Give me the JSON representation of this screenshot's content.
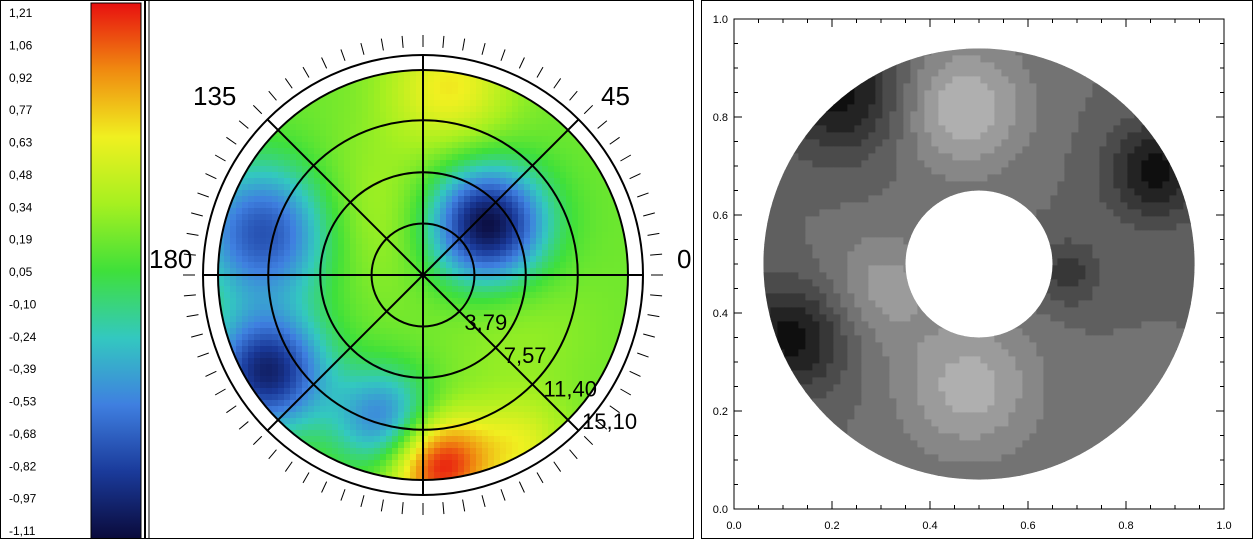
{
  "chart_data": [
    {
      "type": "heatmap",
      "subtype": "polar",
      "title": "",
      "colorbar": {
        "ticks": [
          "1,21",
          "1,06",
          "0,92",
          "0,77",
          "0,63",
          "0,48",
          "0,34",
          "0,19",
          "0,05",
          "-0,10",
          "-0,24",
          "-0,39",
          "-0,53",
          "-0,68",
          "-0,82",
          "-0,97",
          "-1,11"
        ],
        "range": [
          -1.11,
          1.21
        ],
        "colors": [
          "#0a0a3a",
          "#1a3a9a",
          "#3f7fe0",
          "#33c8c0",
          "#3fe03a",
          "#a6f020",
          "#f0f020",
          "#f08a10",
          "#e81010"
        ]
      },
      "angle_labels": [
        {
          "deg": 0,
          "text": "0"
        },
        {
          "deg": 45,
          "text": "45"
        },
        {
          "deg": 135,
          "text": "135"
        },
        {
          "deg": 180,
          "text": "180"
        }
      ],
      "radial_labels": [
        "3,79",
        "7,57",
        "11,40",
        "15,10"
      ],
      "radial_values": [
        3.79,
        7.57,
        11.4,
        15.1
      ],
      "spoke_angles_deg": [
        0,
        45,
        90,
        135,
        180,
        225,
        270,
        315
      ],
      "blobs": [
        {
          "angle_deg": 38,
          "r": 6.0,
          "value": -1.11,
          "spread": 3.0
        },
        {
          "angle_deg": 165,
          "r": 12.0,
          "value": -0.75,
          "spread": 3.6
        },
        {
          "angle_deg": 212,
          "r": 13.5,
          "value": -0.95,
          "spread": 3.0
        },
        {
          "angle_deg": 255,
          "r": 11.0,
          "value": -0.55,
          "spread": 2.6
        },
        {
          "angle_deg": 275,
          "r": 14.0,
          "value": 1.21,
          "spread": 2.6
        },
        {
          "angle_deg": 82,
          "r": 14.0,
          "value": 0.65,
          "spread": 3.2
        },
        {
          "angle_deg": 135,
          "r": 6.0,
          "value": 0.4,
          "spread": 4.0
        },
        {
          "angle_deg": 330,
          "r": 8.0,
          "value": 0.3,
          "spread": 4.0
        },
        {
          "angle_deg": 300,
          "r": 14.5,
          "value": 0.55,
          "spread": 2.4
        }
      ],
      "base_value": 0.18
    },
    {
      "type": "heatmap",
      "subtype": "annulus-grayscale",
      "xlim": [
        0.0,
        1.0
      ],
      "ylim": [
        0.0,
        1.0
      ],
      "xticks": [
        "0.0",
        "0.2",
        "0.4",
        "0.6",
        "0.8",
        "1.0"
      ],
      "yticks": [
        "0.0",
        "0.2",
        "0.4",
        "0.6",
        "0.8",
        "1.0"
      ],
      "center": [
        0.5,
        0.5
      ],
      "outer_radius": 0.44,
      "inner_radius": 0.15,
      "blobs": [
        {
          "x": 0.22,
          "y": 0.85,
          "value": -1.0,
          "spread": 0.09
        },
        {
          "x": 0.86,
          "y": 0.69,
          "value": -1.0,
          "spread": 0.07
        },
        {
          "x": 0.12,
          "y": 0.35,
          "value": -1.0,
          "spread": 0.08
        },
        {
          "x": 0.68,
          "y": 0.48,
          "value": -0.6,
          "spread": 0.05
        },
        {
          "x": 0.47,
          "y": 0.82,
          "value": 0.7,
          "spread": 0.09
        },
        {
          "x": 0.48,
          "y": 0.25,
          "value": 0.6,
          "spread": 0.1
        },
        {
          "x": 0.3,
          "y": 0.45,
          "value": 0.4,
          "spread": 0.08
        }
      ],
      "base_value": -0.1
    }
  ]
}
